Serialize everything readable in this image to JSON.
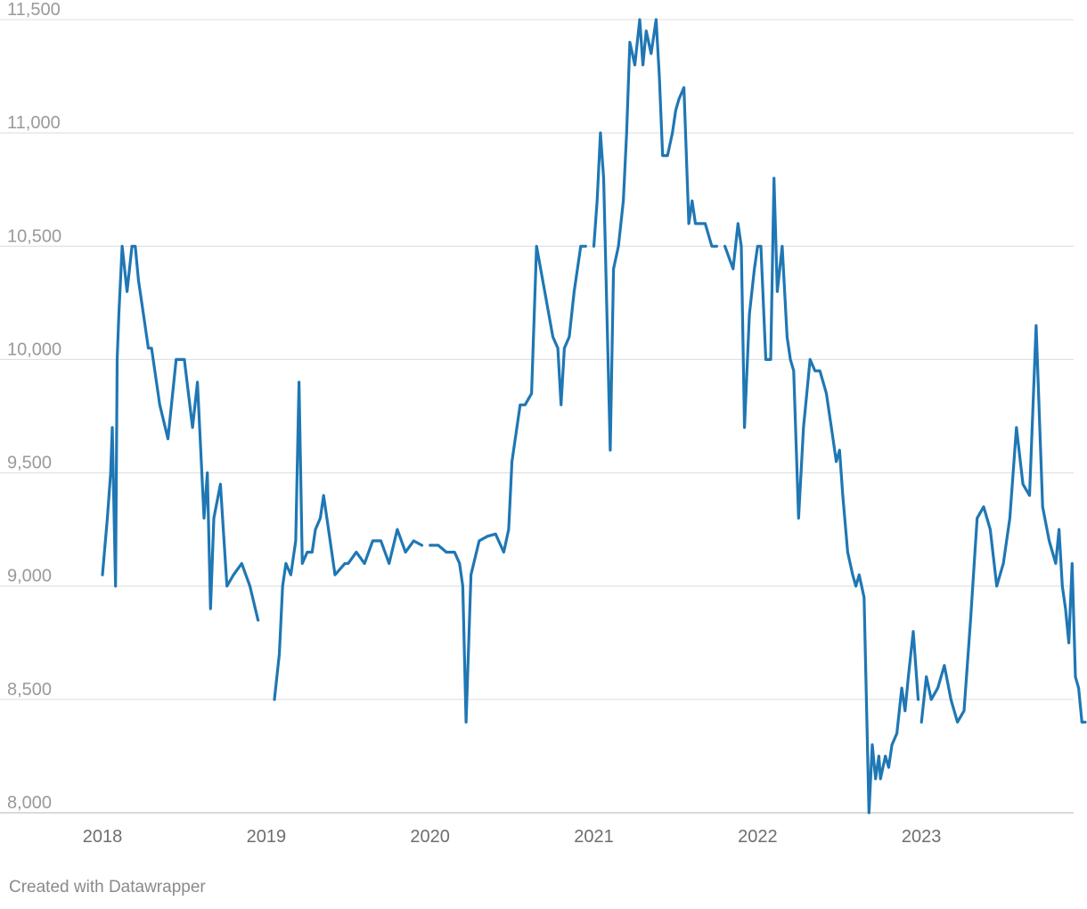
{
  "credit": "Created with Datawrapper",
  "colors": {
    "line": "#1f77b4",
    "grid": "#dcdcdc",
    "tick_text": "#9a9a9a"
  },
  "chart_data": {
    "type": "line",
    "title": "",
    "xlabel": "",
    "ylabel": "",
    "xlim": [
      2018.0,
      2024.0
    ],
    "ylim": [
      8000,
      11500
    ],
    "y_ticks": [
      8000,
      8500,
      9000,
      9500,
      10000,
      10500,
      11000,
      11500
    ],
    "y_tick_labels": [
      "8,000",
      "8,500",
      "9,000",
      "9,500",
      "10,000",
      "10,500",
      "11,000",
      "11,500"
    ],
    "x_ticks": [
      2018,
      2019,
      2020,
      2021,
      2022,
      2023
    ],
    "x_tick_labels": [
      "2018",
      "2019",
      "2020",
      "2021",
      "2022",
      "2023"
    ],
    "grid": "horizontal",
    "legend": "none",
    "series": [
      {
        "x": [
          2018.0,
          2018.03,
          2018.05,
          2018.06,
          2018.08,
          2018.09,
          2018.1,
          2018.12,
          2018.15,
          2018.18,
          2018.2,
          2018.22,
          2018.25,
          2018.28,
          2018.3,
          2018.35,
          2018.4,
          2018.45,
          2018.5,
          2018.55,
          2018.58,
          2018.62,
          2018.64,
          2018.66,
          2018.68,
          2018.72,
          2018.76,
          2018.8,
          2018.85,
          2018.9,
          2018.95
        ],
        "y": [
          9050,
          9300,
          9500,
          9700,
          9000,
          10000,
          10200,
          10500,
          10300,
          10500,
          10500,
          10350,
          10200,
          10050,
          10050,
          9800,
          9650,
          10000,
          10000,
          9700,
          9900,
          9300,
          9500,
          8900,
          9300,
          9450,
          9000,
          9050,
          9100,
          9000,
          8850
        ]
      },
      {
        "x": [
          2019.05,
          2019.08,
          2019.1,
          2019.12,
          2019.15,
          2019.18,
          2019.2,
          2019.22,
          2019.25,
          2019.28,
          2019.3,
          2019.33,
          2019.35,
          2019.38,
          2019.42,
          2019.48,
          2019.5,
          2019.55,
          2019.6,
          2019.65,
          2019.7,
          2019.75,
          2019.8,
          2019.85,
          2019.9,
          2019.95
        ],
        "y": [
          8500,
          8700,
          9000,
          9100,
          9050,
          9200,
          9900,
          9100,
          9150,
          9150,
          9250,
          9300,
          9400,
          9250,
          9050,
          9100,
          9100,
          9150,
          9100,
          9200,
          9200,
          9100,
          9250,
          9150,
          9200,
          9180
        ]
      },
      {
        "x": [
          2020.0,
          2020.05,
          2020.1,
          2020.15,
          2020.18,
          2020.2,
          2020.22,
          2020.25,
          2020.3,
          2020.35,
          2020.4,
          2020.45,
          2020.48,
          2020.5,
          2020.55,
          2020.58,
          2020.62,
          2020.65,
          2020.7,
          2020.75,
          2020.78,
          2020.8,
          2020.82,
          2020.85,
          2020.88,
          2020.92,
          2020.95
        ],
        "y": [
          9180,
          9180,
          9150,
          9150,
          9100,
          9000,
          8400,
          9050,
          9200,
          9220,
          9230,
          9150,
          9250,
          9550,
          9800,
          9800,
          9850,
          10500,
          10300,
          10100,
          10050,
          9800,
          10050,
          10100,
          10300,
          10500,
          10500
        ]
      },
      {
        "x": [
          2021.0,
          2021.02,
          2021.04,
          2021.06,
          2021.08,
          2021.1,
          2021.12,
          2021.15,
          2021.18,
          2021.2,
          2021.22,
          2021.25,
          2021.28,
          2021.3,
          2021.32,
          2021.35,
          2021.38,
          2021.4,
          2021.42,
          2021.45,
          2021.48,
          2021.5,
          2021.52,
          2021.55,
          2021.58,
          2021.6,
          2021.62,
          2021.65,
          2021.68,
          2021.7,
          2021.72,
          2021.75
        ],
        "y": [
          10500,
          10700,
          11000,
          10800,
          10200,
          9600,
          10400,
          10500,
          10700,
          11000,
          11400,
          11300,
          11500,
          11300,
          11450,
          11350,
          11500,
          11250,
          10900,
          10900,
          11000,
          11100,
          11150,
          11200,
          10600,
          10700,
          10600,
          10600,
          10600,
          10550,
          10500,
          10500
        ]
      },
      {
        "x": [
          2021.8,
          2021.85,
          2021.88,
          2021.9,
          2021.92,
          2021.95,
          2021.98,
          2022.0,
          2022.02,
          2022.05,
          2022.08,
          2022.1,
          2022.12,
          2022.15,
          2022.18,
          2022.2,
          2022.22,
          2022.25,
          2022.28,
          2022.3,
          2022.32,
          2022.35,
          2022.38,
          2022.4,
          2022.42,
          2022.45,
          2022.48,
          2022.5,
          2022.52,
          2022.55,
          2022.58,
          2022.6,
          2022.62,
          2022.65,
          2022.68,
          2022.7,
          2022.72,
          2022.74,
          2022.75,
          2022.78,
          2022.8,
          2022.82,
          2022.85,
          2022.88,
          2022.9,
          2022.92,
          2022.95,
          2022.98
        ],
        "y": [
          10500,
          10400,
          10600,
          10500,
          9700,
          10200,
          10400,
          10500,
          10500,
          10000,
          10000,
          10800,
          10300,
          10500,
          10100,
          10000,
          9950,
          9300,
          9700,
          9850,
          10000,
          9950,
          9950,
          9900,
          9850,
          9700,
          9550,
          9600,
          9400,
          9150,
          9050,
          9000,
          9050,
          8950,
          8000,
          8300,
          8150,
          8250,
          8150,
          8250,
          8200,
          8300,
          8350,
          8550,
          8450,
          8600,
          8800,
          8500
        ]
      },
      {
        "x": [
          2023.0,
          2023.03,
          2023.06,
          2023.1,
          2023.14,
          2023.18,
          2023.22,
          2023.26,
          2023.3,
          2023.34,
          2023.38,
          2023.42,
          2023.46,
          2023.5,
          2023.54,
          2023.58,
          2023.62,
          2023.66,
          2023.7,
          2023.74,
          2023.78,
          2023.82,
          2023.84,
          2023.86,
          2023.88,
          2023.9,
          2023.92,
          2023.94,
          2023.96,
          2023.98,
          2024.0
        ],
        "y": [
          8400,
          8600,
          8500,
          8550,
          8650,
          8500,
          8400,
          8450,
          8850,
          9300,
          9350,
          9250,
          9000,
          9100,
          9300,
          9700,
          9450,
          9400,
          10150,
          9350,
          9200,
          9100,
          9250,
          9000,
          8900,
          8750,
          9100,
          8600,
          8550,
          8400,
          8400
        ]
      }
    ]
  }
}
